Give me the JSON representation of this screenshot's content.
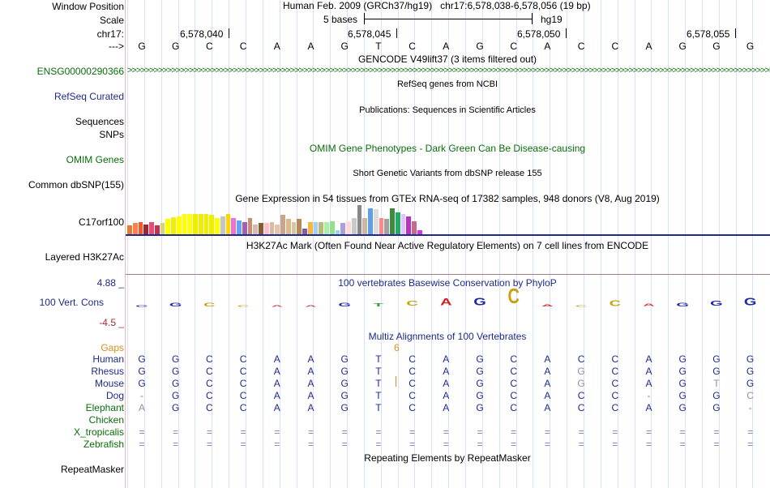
{
  "header": {
    "window_position_label": "Window Position",
    "scale_label": "Scale",
    "chrom_label": "chr17:",
    "arrow_label": "--->",
    "assembly": "Human Feb. 2009 (GRCh37/hg19)",
    "position": "chr17:6,578,038-6,578,056 (19 bp)",
    "scale_text": "5 bases",
    "db": "hg19",
    "coords": [
      "6,578,040",
      "6,578,045",
      "6,578,050",
      "6,578,055"
    ]
  },
  "sequence": [
    "G",
    "G",
    "C",
    "C",
    "A",
    "A",
    "G",
    "T",
    "C",
    "A",
    "G",
    "C",
    "A",
    "C",
    "C",
    "A",
    "G",
    "G",
    "G"
  ],
  "tracks": {
    "gencode_title": "GENCODE V49lift37 (3 items filtered out)",
    "gencode_label": "ENSG00000290366",
    "refseq_title": "RefSeq genes from NCBI",
    "refseq_label": "RefSeq Curated",
    "pubs_title": "Publications: Sequences in Scientific Articles",
    "sequences_label": "Sequences",
    "snps_label": "SNPs",
    "omim_title": "OMIM Gene Phenotypes - Dark Green Can Be Disease-causing",
    "omim_label": "OMIM Genes",
    "dbsnp_title": "Short Genetic Variants from dbSNP release 155",
    "dbsnp_label": "Common dbSNP(155)",
    "gtex_title": "Gene Expression in 54 tissues from GTEx RNA-seq of 17382 samples, 948 donors (V8, Aug 2019)",
    "gtex_label": "C17orf100",
    "h3k_title": "H3K27Ac Mark (Often Found Near Active Regulatory Elements) on 7 cell lines from ENCODE",
    "h3k_label": "Layered H3K27Ac",
    "cons_title": "100 vertebrates Basewise Conservation by PhyloP",
    "cons_label": "100 Vert. Cons",
    "cons_max": "4.88 _",
    "cons_min": "-4.5 _",
    "multiz_title": "Multiz Alignments of 100 Vertebrates",
    "gaps_label": "Gaps",
    "gap_value": "6",
    "rmsk_title": "Repeating Elements by RepeatMasker",
    "rmsk_label": "RepeatMasker"
  },
  "alignments": [
    {
      "species": "Human",
      "bases": [
        "G",
        "G",
        "C",
        "C",
        "A",
        "A",
        "G",
        "T",
        "C",
        "A",
        "G",
        "C",
        "A",
        "C",
        "C",
        "A",
        "G",
        "G",
        "G"
      ]
    },
    {
      "species": "Rhesus",
      "bases": [
        "G",
        "G",
        "C",
        "C",
        "A",
        "A",
        "G",
        "T",
        "C",
        "A",
        "G",
        "C",
        "A",
        "G",
        "C",
        "A",
        "G",
        "G",
        "G"
      ]
    },
    {
      "species": "Mouse",
      "bases": [
        "G",
        "G",
        "C",
        "C",
        "A",
        "A",
        "G",
        "T",
        "C",
        "A",
        "G",
        "C",
        "A",
        "G",
        "C",
        "A",
        "G",
        "T",
        "G"
      ]
    },
    {
      "species": "Dog",
      "bases": [
        "-",
        "G",
        "C",
        "C",
        "A",
        "A",
        "G",
        "T",
        "C",
        "A",
        "G",
        "C",
        "A",
        "C",
        "C",
        "-",
        "G",
        "G",
        "C"
      ]
    },
    {
      "species": "Elephant",
      "bases": [
        "A",
        "G",
        "C",
        "C",
        "A",
        "A",
        "G",
        "T",
        "C",
        "A",
        "G",
        "C",
        "A",
        "C",
        "C",
        "A",
        "G",
        "G",
        "-"
      ]
    },
    {
      "species": "Chicken",
      "bases": [
        "",
        "",
        "",
        "",
        "",
        "",
        "",
        "",
        "",
        "",
        "",
        "",
        "",
        "",
        "",
        "",
        "",
        "",
        ""
      ]
    },
    {
      "species": "X_tropicalis",
      "bases": [
        "=",
        "=",
        "=",
        "=",
        "=",
        "=",
        "=",
        "=",
        "=",
        "=",
        "=",
        "=",
        "=",
        "=",
        "=",
        "=",
        "=",
        "=",
        "="
      ]
    },
    {
      "species": "Zebrafish",
      "bases": [
        "=",
        "=",
        "=",
        "=",
        "=",
        "=",
        "=",
        "=",
        "=",
        "=",
        "=",
        "=",
        "=",
        "=",
        "=",
        "=",
        "=",
        "=",
        "="
      ]
    }
  ],
  "gtex_values": [
    0.45,
    0.55,
    0.6,
    0.5,
    0.6,
    0.45,
    0.55,
    0.75,
    0.85,
    0.9,
    1.0,
    1.0,
    1.0,
    1.0,
    1.0,
    0.95,
    0.8,
    0.9,
    1.0,
    0.8,
    0.7,
    0.6,
    0.8,
    0.5,
    0.55,
    0.55,
    0.6,
    0.5,
    0.95,
    0.75,
    0.6,
    0.75,
    0.3,
    0.6,
    0.6,
    0.6,
    0.6,
    0.65,
    0.2,
    0.55,
    0.65,
    0.8,
    1.45,
    0.8,
    1.3,
    1.25,
    0.8,
    0.75,
    1.3,
    1.1,
    1.0,
    0.9,
    0.65,
    0.2
  ],
  "gtex_colors": [
    "#e87a2c",
    "#ff7f50",
    "#f35a2b",
    "#a8242a",
    "#e84a7a",
    "#c92e50",
    "#d4d47a",
    "#ffff00",
    "#f0f000",
    "#ffff00",
    "#ffff00",
    "#ffff00",
    "#eeee00",
    "#eeee00",
    "#eeee00",
    "#eeee00",
    "#ffff00",
    "#c5c5c5",
    "#ffd700",
    "#ef72d0",
    "#66a6f0",
    "#a45fb2",
    "#cc8c6f",
    "#d6bbb2",
    "#8c5a30",
    "#ffc0cb",
    "#ddb9a4",
    "#e6c4a6",
    "#c8a68d",
    "#deb88a",
    "#d9c59e",
    "#b48a5a",
    "#8a59a0",
    "#f5b642",
    "#9ed0f0",
    "#bbbb79",
    "#aaeeaa",
    "#8ce38c",
    "#9ed0f0",
    "#aaa0d8",
    "#ffd8d8",
    "#c9c9c9",
    "#888888",
    "#cdb79e",
    "#5fa0e0",
    "#dddddd",
    "#ff8888",
    "#a0a0a0",
    "#3b8d3b",
    "#22aa66",
    "#dfc4ff",
    "#bb33bb",
    "#c46a8a",
    "#dd33dd"
  ],
  "cons_values": [
    0.12,
    0.25,
    0.25,
    0.12,
    0,
    0.1,
    0.25,
    0.2,
    0.3,
    0.45,
    0.5,
    1.0,
    0.15,
    0.1,
    0.4,
    0.18,
    0.25,
    0.3,
    0.5
  ],
  "colors": {
    "label_blue": "#1f2a8a",
    "label_green": "#0a6d0a",
    "gaps_orange": "#d88f1a"
  }
}
